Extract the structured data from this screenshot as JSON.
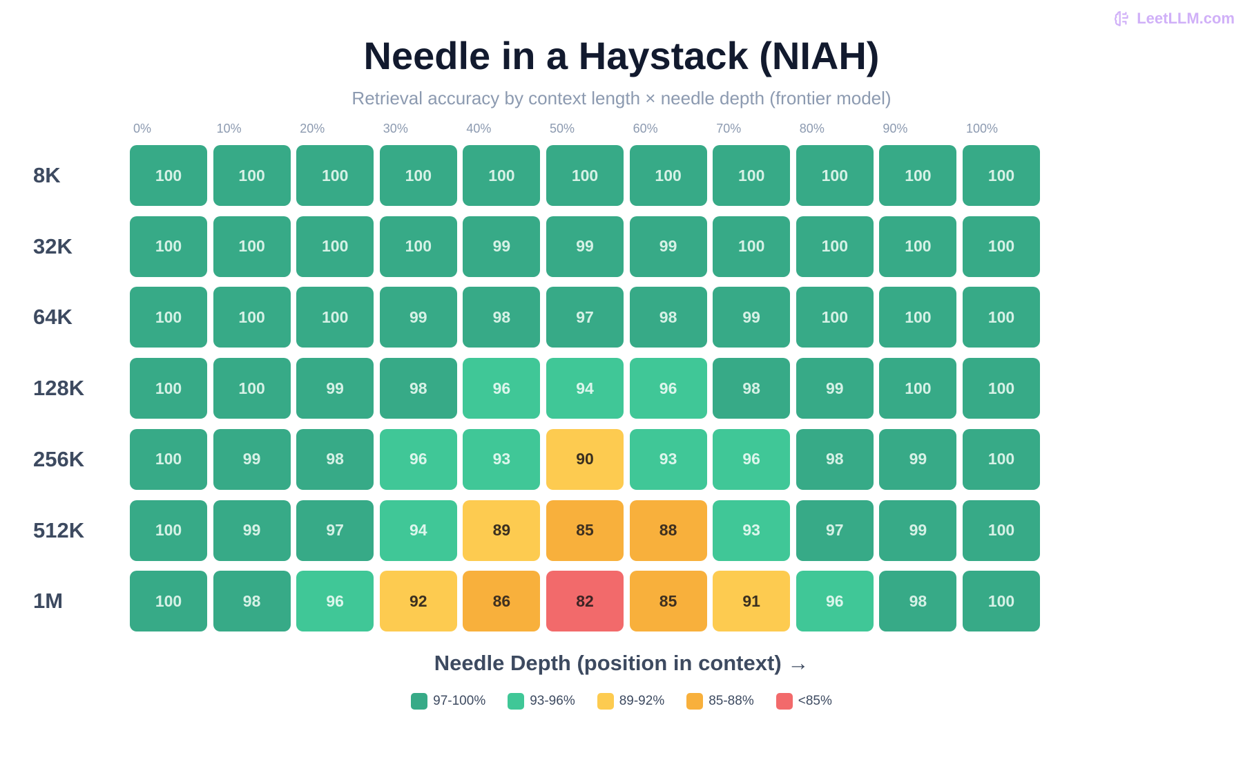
{
  "brand": {
    "name": "LeetLLM.com",
    "icon": "brain-icon",
    "color": "#d0b0f8"
  },
  "chart_data": {
    "type": "heatmap",
    "title": "Needle in a Haystack (NIAH)",
    "subtitle": "Retrieval accuracy by context length × needle depth (frontier model)",
    "xlabel": "Needle Depth (position in context) →",
    "x_categories": [
      "0%",
      "10%",
      "20%",
      "30%",
      "40%",
      "50%",
      "60%",
      "70%",
      "80%",
      "90%",
      "100%"
    ],
    "y_categories": [
      "8K",
      "32K",
      "64K",
      "128K",
      "256K",
      "512K",
      "1M"
    ],
    "values": [
      [
        100,
        100,
        100,
        100,
        100,
        100,
        100,
        100,
        100,
        100,
        100
      ],
      [
        100,
        100,
        100,
        100,
        99,
        99,
        99,
        100,
        100,
        100,
        100
      ],
      [
        100,
        100,
        100,
        99,
        98,
        97,
        98,
        99,
        100,
        100,
        100
      ],
      [
        100,
        100,
        99,
        98,
        96,
        94,
        96,
        98,
        99,
        100,
        100
      ],
      [
        100,
        99,
        98,
        96,
        93,
        90,
        93,
        96,
        98,
        99,
        100
      ],
      [
        100,
        99,
        97,
        94,
        89,
        85,
        88,
        93,
        97,
        99,
        100
      ],
      [
        100,
        98,
        96,
        92,
        86,
        82,
        85,
        91,
        96,
        98,
        100
      ]
    ],
    "legend": [
      {
        "label": "97-100%",
        "min": 97,
        "color": "#37aa87",
        "text_color": "#d6f1e6"
      },
      {
        "label": "93-96%",
        "min": 93,
        "color": "#40c797",
        "text_color": "#dcf6ec"
      },
      {
        "label": "89-92%",
        "min": 89,
        "color": "#fdcb50",
        "text_color": "#3b3020"
      },
      {
        "label": "85-88%",
        "min": 85,
        "color": "#f8b03c",
        "text_color": "#3f3020"
      },
      {
        "label": "<85%",
        "min": 0,
        "color": "#f26a6b",
        "text_color": "#3c2424"
      }
    ],
    "legend_placement": "bottom"
  }
}
